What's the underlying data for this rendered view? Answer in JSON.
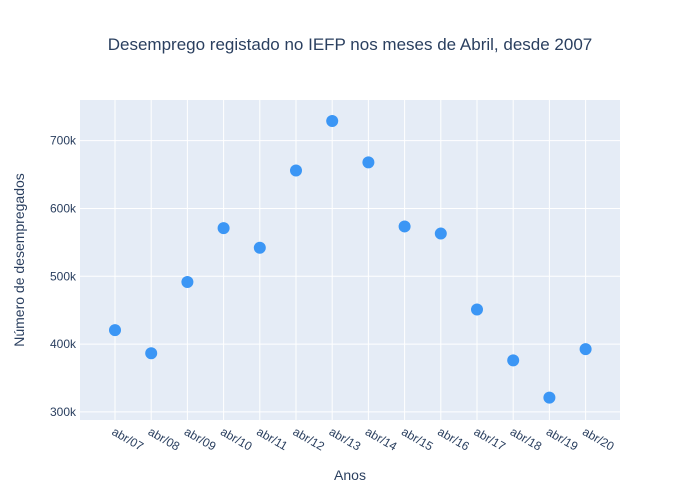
{
  "chart_data": {
    "type": "scatter",
    "title": "Desemprego registado no IEFP nos meses de Abril, desde 2007",
    "xlabel": "Anos",
    "ylabel": "Número de desempregados",
    "x": [
      "abr/07",
      "abr/08",
      "abr/09",
      "abr/10",
      "abr/11",
      "abr/12",
      "abr/13",
      "abr/14",
      "abr/15",
      "abr/16",
      "abr/17",
      "abr/18",
      "abr/19",
      "abr/20"
    ],
    "values": [
      420500,
      386500,
      491500,
      571000,
      542000,
      656000,
      729000,
      668000,
      573500,
      563000,
      451000,
      376000,
      321000,
      392500
    ],
    "y_ticks": [
      300000,
      400000,
      500000,
      600000,
      700000
    ],
    "y_tick_labels": [
      "300k",
      "400k",
      "500k",
      "600k",
      "700k"
    ],
    "ylim": [
      288000,
      760000
    ],
    "grid": true,
    "colors": {
      "marker": "#3b96f5",
      "plot_bg": "#e5ecf6",
      "text": "#2a3f5f"
    }
  }
}
